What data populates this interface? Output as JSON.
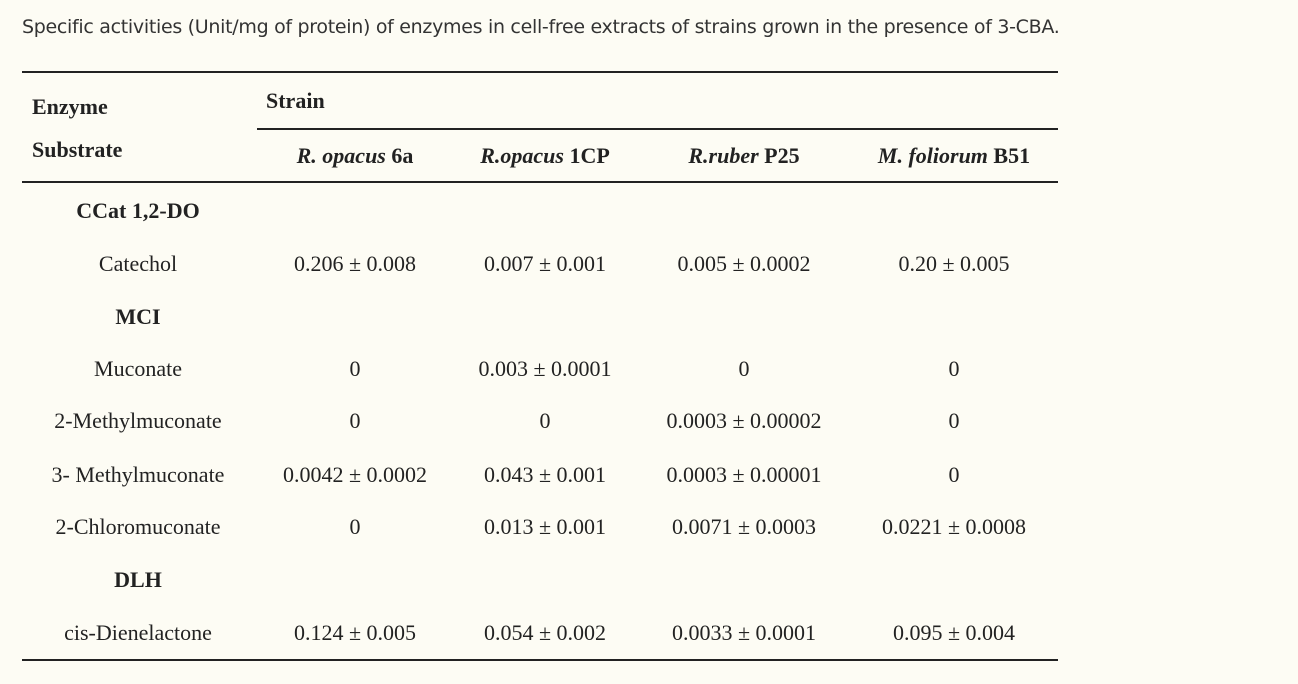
{
  "caption": "Specific activities (Unit/mg of protein) of enzymes in cell-free extracts of strains grown in the presence of 3-CBA.",
  "header": {
    "enzyme": "Enzyme",
    "substrate": "Substrate",
    "strain": "Strain",
    "strains": [
      {
        "species": "R. opacus",
        "id": " 6a"
      },
      {
        "species": "R.opacus",
        "id": " 1CP"
      },
      {
        "species": "R.ruber",
        "id": " P25"
      },
      {
        "species": "M. foliorum",
        "id": " B51"
      }
    ]
  },
  "rows": [
    {
      "type": "enzyme",
      "label": "CCat 1,2-DO"
    },
    {
      "type": "substrate",
      "label": "Catechol",
      "values": [
        "0.206 ± 0.008",
        "0.007 ± 0.001",
        "0.005 ± 0.0002",
        "0.20 ± 0.005"
      ]
    },
    {
      "type": "enzyme",
      "label": "MCI"
    },
    {
      "type": "substrate",
      "label": "Muconate",
      "values": [
        "0",
        "0.003 ± 0.0001",
        "0",
        "0"
      ]
    },
    {
      "type": "substrate",
      "label": "2-Methylmuconate",
      "values": [
        "0",
        "0",
        "0.0003 ± 0.00002",
        "0"
      ]
    },
    {
      "type": "substrate",
      "label": "3- Methylmuconate",
      "values": [
        "0.0042 ± 0.0002",
        "0.043 ± 0.001",
        "0.0003 ± 0.00001",
        "0"
      ]
    },
    {
      "type": "substrate",
      "label": "2-Chloromuconate",
      "values": [
        "0",
        "0.013 ± 0.001",
        "0.0071 ± 0.0003",
        "0.0221 ± 0.0008"
      ]
    },
    {
      "type": "enzyme",
      "label": "DLH"
    },
    {
      "type": "substrate",
      "label": "cis-Dienelactone",
      "values": [
        "0.124 ± 0.005",
        "0.054 ± 0.002",
        "0.0033 ± 0.0001",
        "0.095 ± 0.004"
      ]
    }
  ]
}
